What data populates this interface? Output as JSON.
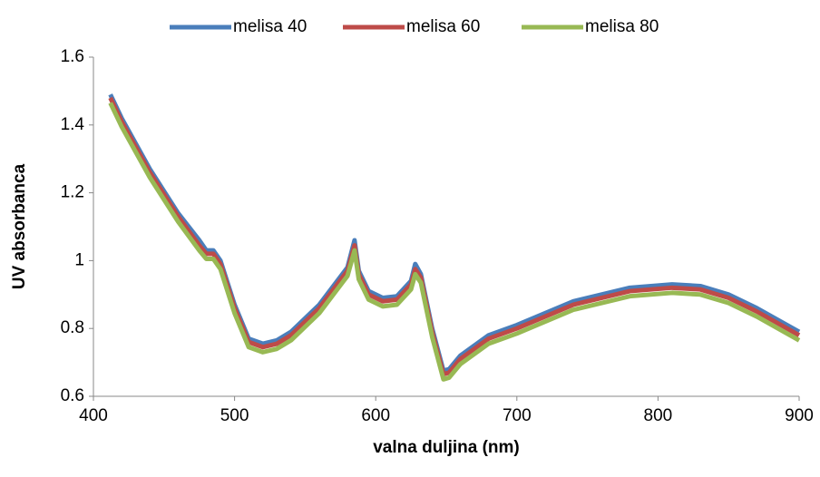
{
  "chart_data": {
    "type": "line",
    "x_label": "valna duljina (nm)",
    "y_label": "UV absorbanca",
    "x": [
      412,
      420,
      440,
      460,
      475,
      480,
      485,
      490,
      500,
      510,
      520,
      530,
      540,
      560,
      580,
      585,
      588,
      595,
      605,
      615,
      625,
      628,
      632,
      640,
      648,
      652,
      660,
      680,
      700,
      740,
      780,
      810,
      830,
      850,
      870,
      900
    ],
    "series": [
      {
        "name": "melisa 40",
        "color": "#4a7ebb",
        "values": [
          1.49,
          1.42,
          1.27,
          1.14,
          1.06,
          1.03,
          1.03,
          1.0,
          0.87,
          0.77,
          0.755,
          0.765,
          0.79,
          0.87,
          0.98,
          1.06,
          0.97,
          0.91,
          0.89,
          0.895,
          0.94,
          0.99,
          0.96,
          0.8,
          0.675,
          0.68,
          0.72,
          0.78,
          0.81,
          0.88,
          0.92,
          0.93,
          0.925,
          0.9,
          0.86,
          0.79
        ]
      },
      {
        "name": "melisa 60",
        "color": "#be4b48",
        "values": [
          1.48,
          1.41,
          1.26,
          1.13,
          1.045,
          1.02,
          1.02,
          0.99,
          0.86,
          0.76,
          0.745,
          0.755,
          0.78,
          0.86,
          0.97,
          1.045,
          0.96,
          0.9,
          0.88,
          0.885,
          0.93,
          0.975,
          0.95,
          0.79,
          0.665,
          0.67,
          0.71,
          0.77,
          0.8,
          0.87,
          0.91,
          0.92,
          0.915,
          0.89,
          0.85,
          0.78
        ]
      },
      {
        "name": "melisa 80",
        "color": "#98b954",
        "values": [
          1.465,
          1.395,
          1.245,
          1.115,
          1.03,
          1.005,
          1.005,
          0.975,
          0.845,
          0.745,
          0.73,
          0.74,
          0.765,
          0.845,
          0.955,
          1.03,
          0.945,
          0.885,
          0.865,
          0.87,
          0.915,
          0.96,
          0.935,
          0.775,
          0.65,
          0.655,
          0.695,
          0.755,
          0.785,
          0.855,
          0.895,
          0.905,
          0.9,
          0.875,
          0.835,
          0.765
        ]
      }
    ],
    "xlim": [
      400,
      900
    ],
    "xticks": [
      400,
      500,
      600,
      700,
      800,
      900
    ],
    "ylim": [
      0.6,
      1.6
    ],
    "yticks": [
      0.6,
      0.8,
      1,
      1.2,
      1.4,
      1.6
    ],
    "legend": "top"
  }
}
